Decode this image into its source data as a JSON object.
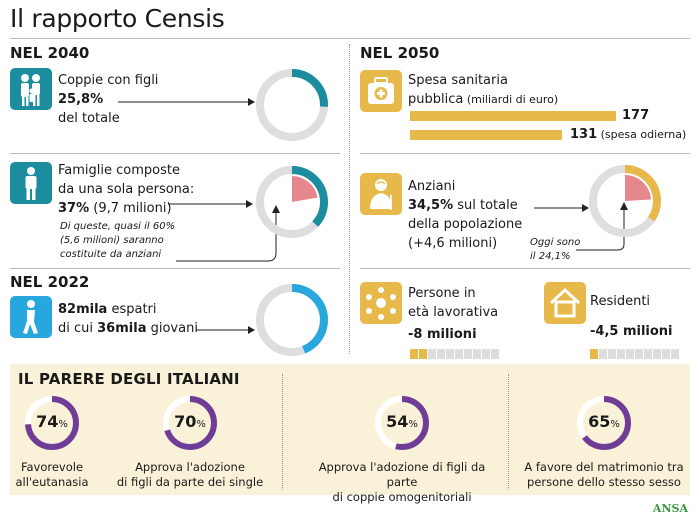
{
  "title": "Il rapporto Censis",
  "colors": {
    "teal": "#1b8d9e",
    "blue": "#27a7dd",
    "gold": "#e7b84a",
    "pink": "#e5878c",
    "purple": "#6f3d96",
    "ring_bg": "#dedede"
  },
  "nel2040": {
    "heading": "NEL 2040",
    "coppie": {
      "icon": "family-icon",
      "line1": "Coppie con figli",
      "value": "25,8%",
      "line3": "del totale",
      "share": 0.258
    },
    "famiglie": {
      "icon": "person-icon",
      "line1": "Famiglie composte",
      "line2": "da una sola persona:",
      "value": "37%",
      "value_rest": " (9,7 milioni)",
      "note1": "Di queste, quasi il 60%",
      "note2": "(5,6 milioni) saranno",
      "note3": "costituite da anziani",
      "share": 0.37,
      "sub_share": 0.6
    }
  },
  "nel2022": {
    "heading": "NEL 2022",
    "espatri": {
      "icon": "walking-person-icon",
      "value1": "82mila",
      "text1": " espatri",
      "text2": "di cui ",
      "value2": "36mila",
      "text3": " giovani",
      "share": 0.44
    }
  },
  "nel2050": {
    "heading": "NEL 2050",
    "spesa": {
      "icon": "medical-kit-icon",
      "line1": "Spesa sanitaria",
      "line2": "pubblica",
      "unit": " (miliardi di euro)",
      "bars": [
        {
          "value": 177,
          "label": "177",
          "note": ""
        },
        {
          "value": 131,
          "label": "131",
          "note": " (spesa odierna)"
        }
      ]
    },
    "anziani": {
      "icon": "elderly-icon",
      "line1": "Anziani",
      "value": "34,5%",
      "line2": " sul totale",
      "line3": "della popolazione",
      "line4": "(+4,6 milioni)",
      "note1": "Oggi sono",
      "note2": "il 24,1%",
      "share": 0.345,
      "today_share": 0.241
    },
    "lavoro": {
      "icon": "group-icon",
      "line1": "Persone in",
      "line2": "età lavorativa",
      "value": "-8 milioni"
    },
    "residenti": {
      "icon": "house-icon",
      "line1": "Residenti",
      "value": "-4,5 milioni"
    }
  },
  "parere": {
    "heading": "IL PARERE DEGLI ITALIANI",
    "items": [
      {
        "value": 74,
        "label": "74",
        "l1": "Favorevole",
        "l2": "all'eutanasia"
      },
      {
        "value": 70,
        "label": "70",
        "l1": "Approva l'adozione",
        "l2": "di figli da parte dei single"
      },
      {
        "value": 54,
        "label": "54",
        "l1": "Approva l'adozione di figli da parte",
        "l2": "di coppie omogenitoriali"
      },
      {
        "value": 65,
        "label": "65",
        "l1": "A favore del matrimonio tra",
        "l2": "persone dello stesso sesso"
      }
    ],
    "pct_sign": "%"
  },
  "source": "ANSA"
}
